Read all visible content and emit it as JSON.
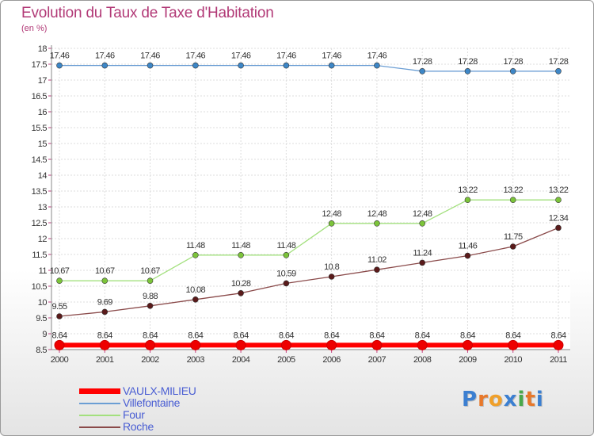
{
  "title": "Evolution du Taux de Taxe d'Habitation",
  "unit_label": "(en %)",
  "logo": {
    "text": "Proxiti",
    "letters": [
      "P",
      "r",
      "o",
      "x",
      "i",
      "t",
      "i"
    ],
    "colors": [
      "#3b7fd1",
      "#e8782a",
      "#f0a02a",
      "#3b7fd1",
      "#49a84a",
      "#e8782a",
      "#3b7fd1"
    ]
  },
  "chart_data": {
    "type": "line",
    "title": "Evolution du Taux de Taxe d'Habitation",
    "ylabel": "(en %)",
    "xlabel": "",
    "x": [
      "2000",
      "2001",
      "2002",
      "2003",
      "2004",
      "2005",
      "2006",
      "2007",
      "2008",
      "2009",
      "2010",
      "2011"
    ],
    "ylim": [
      8.5,
      18
    ],
    "yticks": [
      "8.5",
      "9",
      "9.5",
      "10",
      "10.5",
      "11",
      "11.5",
      "12",
      "12.5",
      "13",
      "13.5",
      "14",
      "14.5",
      "15",
      "15.5",
      "16",
      "16.5",
      "17",
      "17.5",
      "18"
    ],
    "grid": true,
    "legend_position": "bottom-left",
    "series": [
      {
        "name": "VAULX-MILIEU",
        "color": "#ff0000",
        "point_color": "#ee0000",
        "line_width": 6,
        "point_radius": 6,
        "values": [
          8.64,
          8.64,
          8.64,
          8.64,
          8.64,
          8.64,
          8.64,
          8.64,
          8.64,
          8.64,
          8.64,
          8.64
        ],
        "labels": [
          "8.64",
          "8.64",
          "8.64",
          "8.64",
          "8.64",
          "8.64",
          "8.64",
          "8.64",
          "8.64",
          "8.64",
          "8.64",
          "8.64"
        ]
      },
      {
        "name": "Villefontaine",
        "color": "#6b9ed4",
        "point_color": "#3d87c7",
        "line_width": 1.3,
        "point_radius": 3.5,
        "values": [
          17.46,
          17.46,
          17.46,
          17.46,
          17.46,
          17.46,
          17.46,
          17.46,
          17.28,
          17.28,
          17.28,
          17.28
        ],
        "labels": [
          "17.46",
          "17.46",
          "17.46",
          "17.46",
          "17.46",
          "17.46",
          "17.46",
          "17.46",
          "17.28",
          "17.28",
          "17.28",
          "17.28"
        ]
      },
      {
        "name": "Four",
        "color": "#a3e07e",
        "point_color": "#7cc43a",
        "line_width": 1.3,
        "point_radius": 3.5,
        "values": [
          10.67,
          10.67,
          10.67,
          11.48,
          11.48,
          11.48,
          12.48,
          12.48,
          12.48,
          13.22,
          13.22,
          13.22
        ],
        "labels": [
          "10.67",
          "10.67",
          "10.67",
          "11.48",
          "11.48",
          "11.48",
          "12.48",
          "12.48",
          "12.48",
          "13.22",
          "13.22",
          "13.22"
        ]
      },
      {
        "name": "Roche",
        "color": "#8a4a4a",
        "point_color": "#5a1a1a",
        "line_width": 1.3,
        "point_radius": 3.5,
        "values": [
          9.55,
          9.69,
          9.88,
          10.08,
          10.28,
          10.59,
          10.8,
          11.02,
          11.24,
          11.46,
          11.75,
          12.34
        ],
        "labels": [
          "9.55",
          "9.69",
          "9.88",
          "10.08",
          "10.28",
          "10.59",
          "10.8",
          "11.02",
          "11.24",
          "11.46",
          "11.75",
          "12.34"
        ]
      }
    ]
  }
}
